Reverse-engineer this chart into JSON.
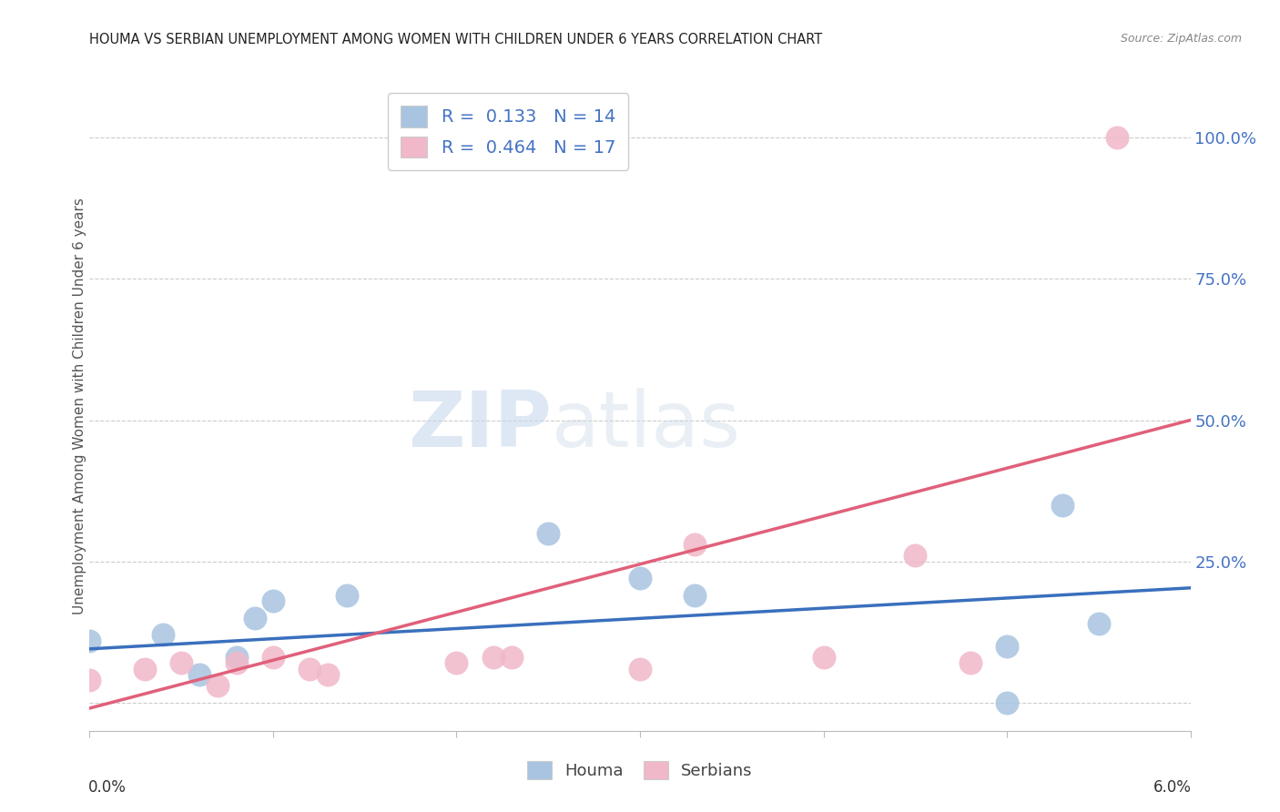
{
  "title": "HOUMA VS SERBIAN UNEMPLOYMENT AMONG WOMEN WITH CHILDREN UNDER 6 YEARS CORRELATION CHART",
  "source": "Source: ZipAtlas.com",
  "ylabel": "Unemployment Among Women with Children Under 6 years",
  "xlim": [
    0.0,
    0.06
  ],
  "ylim": [
    -0.05,
    1.1
  ],
  "yticks": [
    0.0,
    0.25,
    0.5,
    0.75,
    1.0
  ],
  "ytick_labels": [
    "",
    "25.0%",
    "50.0%",
    "75.0%",
    "100.0%"
  ],
  "xticks": [
    0.0,
    0.01,
    0.02,
    0.03,
    0.04,
    0.05,
    0.06
  ],
  "houma_R": "0.133",
  "houma_N": "14",
  "serbian_R": "0.464",
  "serbian_N": "17",
  "houma_color": "#a8c4e0",
  "houma_line_color": "#3a6fbd",
  "serbian_color": "#f0b8c8",
  "serbian_line_color": "#e0607a",
  "watermark_zip": "ZIP",
  "watermark_atlas": "atlas",
  "houma_x": [
    0.0,
    0.004,
    0.006,
    0.008,
    0.009,
    0.01,
    0.014,
    0.025,
    0.03,
    0.033,
    0.05,
    0.05,
    0.053,
    0.055
  ],
  "houma_y": [
    0.11,
    0.12,
    0.05,
    0.08,
    0.15,
    0.18,
    0.19,
    0.3,
    0.22,
    0.19,
    0.0,
    0.1,
    0.35,
    0.14
  ],
  "serbian_x": [
    0.0,
    0.003,
    0.005,
    0.007,
    0.008,
    0.01,
    0.012,
    0.013,
    0.02,
    0.022,
    0.023,
    0.03,
    0.033,
    0.04,
    0.045,
    0.048,
    0.056
  ],
  "serbian_y": [
    0.04,
    0.06,
    0.07,
    0.03,
    0.07,
    0.08,
    0.06,
    0.05,
    0.07,
    0.08,
    0.08,
    0.06,
    0.28,
    0.08,
    0.26,
    0.07,
    1.0
  ],
  "houma_slope": 1.8,
  "houma_intercept": 0.095,
  "serbian_slope": 8.5,
  "serbian_intercept": -0.01,
  "legend_label_houma": "Houma",
  "legend_label_serbian": "Serbians"
}
